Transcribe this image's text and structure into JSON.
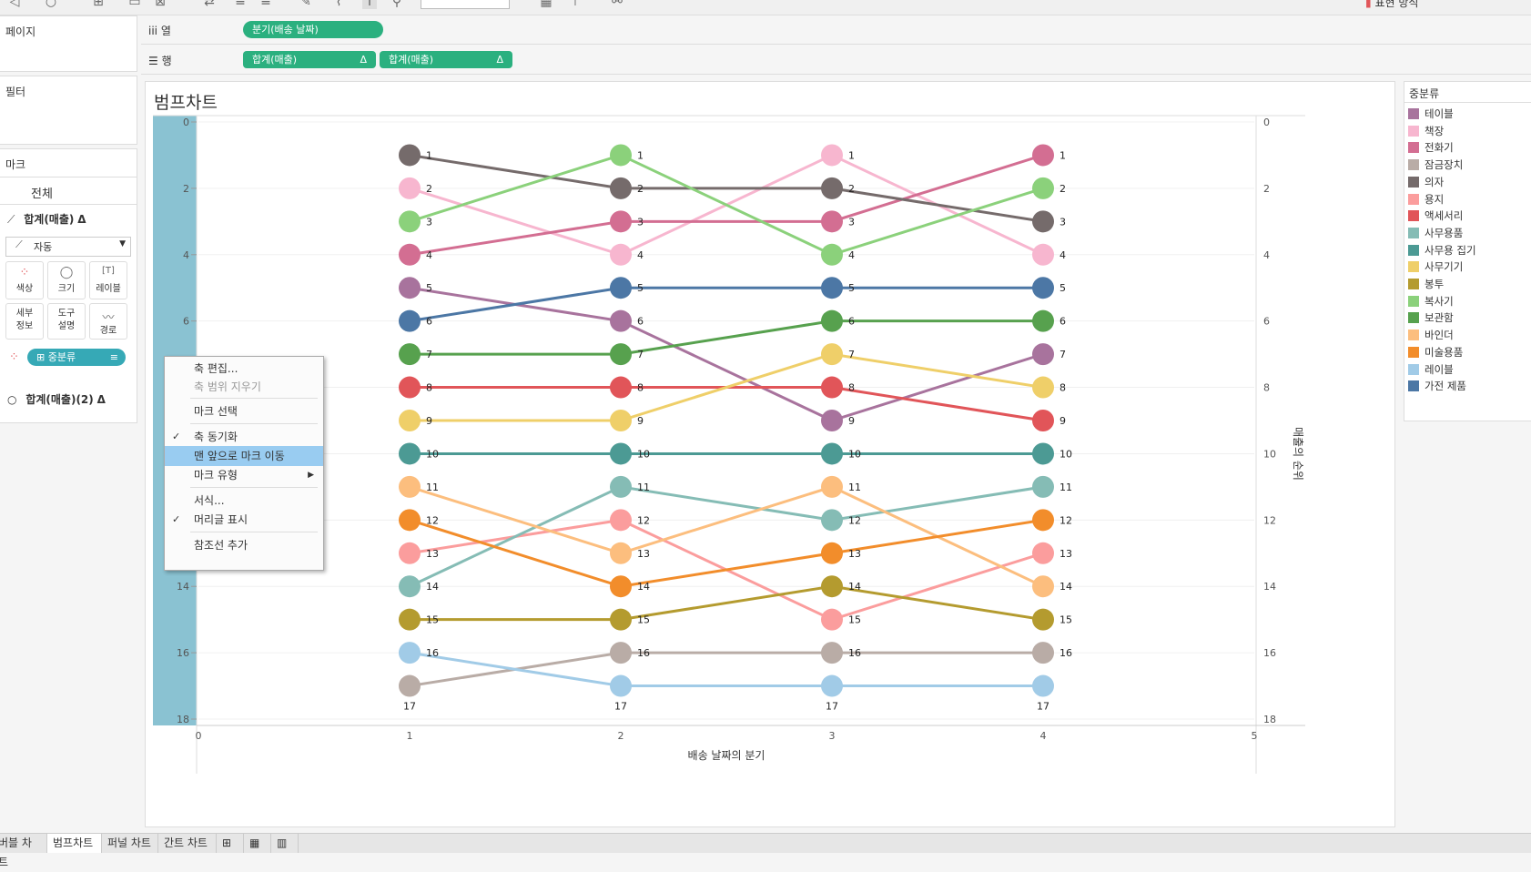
{
  "toolbar": {
    "right_text": "표현 방식"
  },
  "left": {
    "pages_title": "페이지",
    "filters_title": "필터",
    "marks_title": "마크",
    "marks_all": "전체",
    "marks_card1": "합계(매출)",
    "marks_card1_suffix": "Δ",
    "mark_type": "자동",
    "buttons": {
      "color": "색상",
      "size": "크기",
      "label": "레이블",
      "detail": "세부 정보",
      "tooltip": "도구 설명",
      "path": "경로"
    },
    "color_pill": "중분류",
    "marks_card2": "합계(매출)(2)",
    "marks_card2_suffix": "Δ"
  },
  "shelves": {
    "columns_label": "열",
    "rows_label": "행",
    "columns_pill": "분기(배송 날짜)",
    "rows_pills": [
      "합계(매출)",
      "합계(매출)"
    ],
    "delta": "Δ"
  },
  "sheet": {
    "title": "범프차트"
  },
  "legend": {
    "title": "중분류",
    "items": [
      {
        "label": "테이블",
        "color": "#a8739d"
      },
      {
        "label": "책장",
        "color": "#f7b6cf"
      },
      {
        "label": "전화기",
        "color": "#d36e92"
      },
      {
        "label": "잠금장치",
        "color": "#b9aca6"
      },
      {
        "label": "의자",
        "color": "#756b6b"
      },
      {
        "label": "용지",
        "color": "#fb9d9d"
      },
      {
        "label": "액세서리",
        "color": "#e15559"
      },
      {
        "label": "사무용품",
        "color": "#85bcb5"
      },
      {
        "label": "사무용 집기",
        "color": "#4c9a94"
      },
      {
        "label": "사무기기",
        "color": "#efcf69"
      },
      {
        "label": "봉투",
        "color": "#b49b2f"
      },
      {
        "label": "복사기",
        "color": "#8bd17b"
      },
      {
        "label": "보관함",
        "color": "#57a14e"
      },
      {
        "label": "바인더",
        "color": "#fcbe7e"
      },
      {
        "label": "미술용품",
        "color": "#f28d2b"
      },
      {
        "label": "레이블",
        "color": "#a1cbe7"
      },
      {
        "label": "가전 제품",
        "color": "#4c77a5"
      }
    ]
  },
  "context_menu": {
    "items": [
      "축 편집...",
      "축 범위 지우기",
      "마크 선택",
      "축 동기화",
      "맨 앞으로 마크 이동",
      "마크 유형",
      "서식...",
      "머리글 표시",
      "참조선 추가"
    ],
    "highlight_color": "#99ccf1"
  },
  "tabs": [
    "버블 차트",
    "범프차트",
    "퍼널 차트",
    "간트 차트"
  ],
  "chart_data": {
    "type": "line",
    "x": [
      1,
      2,
      3,
      4
    ],
    "xlabel": "배송 날짜의 분기",
    "ylabel_right": "매출의 순위",
    "xlim": [
      0,
      5
    ],
    "ylim": [
      0,
      18
    ],
    "y_reversed": true,
    "x_ticks": [
      0,
      1,
      2,
      3,
      4,
      5
    ],
    "y_ticks": [
      0,
      2,
      4,
      6,
      8,
      10,
      12,
      14,
      16,
      18
    ],
    "series": [
      {
        "name": "테이블",
        "color": "#a8739d",
        "values": [
          5,
          6,
          9,
          7
        ]
      },
      {
        "name": "책장",
        "color": "#f7b6cf",
        "values": [
          2,
          4,
          1,
          4
        ]
      },
      {
        "name": "전화기",
        "color": "#d36e92",
        "values": [
          4,
          3,
          3,
          1
        ]
      },
      {
        "name": "잠금장치",
        "color": "#b9aca6",
        "values": [
          17,
          16,
          16,
          16
        ]
      },
      {
        "name": "의자",
        "color": "#756b6b",
        "values": [
          1,
          2,
          2,
          3
        ]
      },
      {
        "name": "용지",
        "color": "#fb9d9d",
        "values": [
          13,
          12,
          15,
          13
        ]
      },
      {
        "name": "액세서리",
        "color": "#e15559",
        "values": [
          8,
          8,
          8,
          9
        ]
      },
      {
        "name": "사무용품",
        "color": "#85bcb5",
        "values": [
          14,
          11,
          12,
          11
        ]
      },
      {
        "name": "사무용 집기",
        "color": "#4c9a94",
        "values": [
          10,
          10,
          10,
          10
        ]
      },
      {
        "name": "사무기기",
        "color": "#efcf69",
        "values": [
          9,
          9,
          7,
          8
        ]
      },
      {
        "name": "봉투",
        "color": "#b49b2f",
        "values": [
          15,
          15,
          14,
          15
        ]
      },
      {
        "name": "복사기",
        "color": "#8bd17b",
        "values": [
          3,
          1,
          4,
          2
        ]
      },
      {
        "name": "보관함",
        "color": "#57a14e",
        "values": [
          7,
          7,
          6,
          6
        ]
      },
      {
        "name": "바인더",
        "color": "#fcbe7e",
        "values": [
          11,
          13,
          11,
          14
        ]
      },
      {
        "name": "미술용품",
        "color": "#f28d2b",
        "values": [
          12,
          14,
          13,
          12
        ]
      },
      {
        "name": "레이블",
        "color": "#a1cbe7",
        "values": [
          16,
          17,
          17,
          17
        ]
      },
      {
        "name": "가전 제품",
        "color": "#4c77a5",
        "values": [
          6,
          5,
          5,
          5
        ]
      }
    ]
  }
}
